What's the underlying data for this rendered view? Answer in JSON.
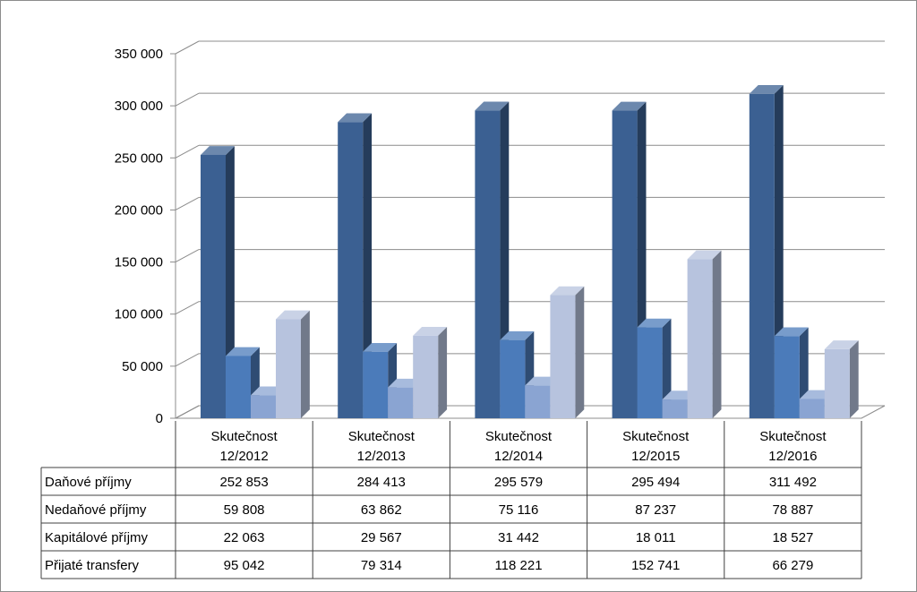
{
  "chart_data": {
    "type": "bar",
    "title": "",
    "xlabel": "",
    "ylabel": "",
    "ylim": [
      0,
      350000
    ],
    "y_ticks": [
      "0",
      "50 000",
      "100 000",
      "150 000",
      "200 000",
      "250 000",
      "300 000",
      "350 000"
    ],
    "y_tick_values": [
      0,
      50000,
      100000,
      150000,
      200000,
      250000,
      300000,
      350000
    ],
    "categories": [
      [
        "Skutečnost",
        "12/2012"
      ],
      [
        "Skutečnost",
        "12/2013"
      ],
      [
        "Skutečnost",
        "12/2014"
      ],
      [
        "Skutečnost",
        "12/2015"
      ],
      [
        "Skutečnost",
        "12/2016"
      ]
    ],
    "grid": true,
    "legend": "data-table",
    "series": [
      {
        "name": "Daňové příjmy",
        "color": "#3b6092",
        "values": [
          252853,
          284413,
          295579,
          295494,
          311492
        ],
        "labels": [
          "252 853",
          "284 413",
          "295 579",
          "295 494",
          "311 492"
        ]
      },
      {
        "name": "Nedaňové příjmy",
        "color": "#4b7bba",
        "values": [
          59808,
          63862,
          75116,
          87237,
          78887
        ],
        "labels": [
          "59 808",
          "63 862",
          "75 116",
          "87 237",
          "78 887"
        ]
      },
      {
        "name": "Kapitálové příjmy",
        "color": "#8aa4d2",
        "values": [
          22063,
          29567,
          31442,
          18011,
          18527
        ],
        "labels": [
          "22 063",
          "29 567",
          "31 442",
          "18 011",
          "18 527"
        ]
      },
      {
        "name": "Přijaté transfery",
        "color": "#b7c3de",
        "values": [
          95042,
          79314,
          118221,
          152741,
          66279
        ],
        "labels": [
          "95 042",
          "79 314",
          "118 221",
          "152 741",
          "66 279"
        ]
      }
    ]
  }
}
